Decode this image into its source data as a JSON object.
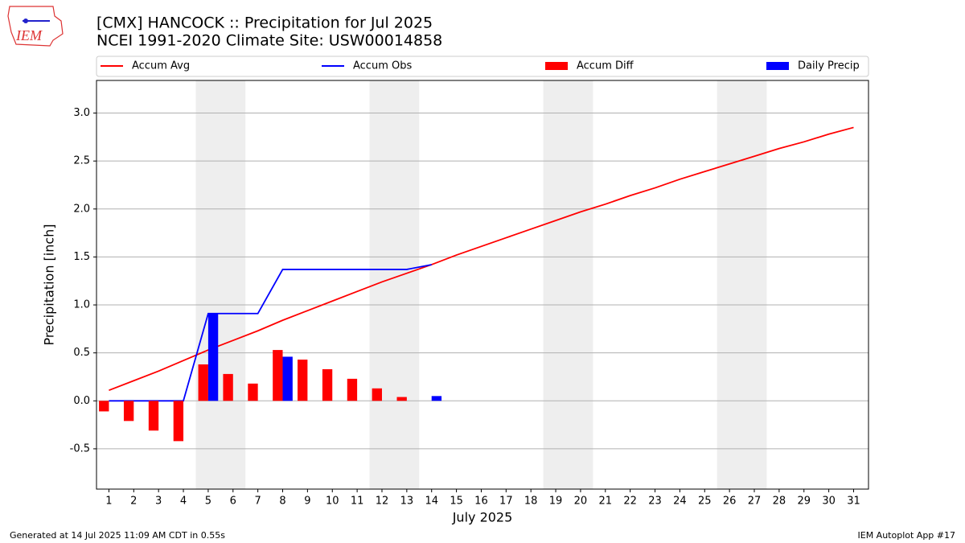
{
  "logo": "IEM",
  "footer": {
    "left": "Generated at 14 Jul 2025 11:09 AM CDT in 0.55s",
    "right": "IEM Autoplot App #17"
  },
  "chart_data": {
    "type": "combo",
    "title": "[CMX] HANCOCK :: Precipitation for Jul 2025",
    "subtitle": "NCEI 1991-2020 Climate Site: USW00014858",
    "y_label": "Precipitation [inch]",
    "x_label": "July 2025",
    "x": [
      1,
      2,
      3,
      4,
      5,
      6,
      7,
      8,
      9,
      10,
      11,
      12,
      13,
      14,
      15,
      16,
      17,
      18,
      19,
      20,
      21,
      22,
      23,
      24,
      25,
      26,
      27,
      28,
      29,
      30,
      31
    ],
    "xlim": [
      0.5,
      31.6
    ],
    "xticks": [
      1,
      2,
      3,
      4,
      5,
      6,
      7,
      8,
      9,
      10,
      11,
      12,
      13,
      14,
      15,
      16,
      17,
      18,
      19,
      20,
      21,
      22,
      23,
      24,
      25,
      26,
      27,
      28,
      29,
      30,
      31
    ],
    "ylim": [
      -0.92,
      3.34
    ],
    "yticks": [
      -0.5,
      {
        "value": 0,
        "label": "0.0"
      },
      0.5,
      {
        "value": 1,
        "label": "1.0"
      },
      1.5,
      {
        "value": 2,
        "label": "2.0"
      },
      2.5,
      {
        "value": 3,
        "label": "3.0"
      }
    ],
    "grid": true,
    "shaded_spans": [
      [
        4.5,
        6.5
      ],
      [
        11.5,
        13.5
      ],
      [
        18.5,
        20.5
      ],
      [
        25.5,
        27.5
      ]
    ],
    "shade_color": "#eeeeee",
    "series": [
      {
        "name": "Accum Avg",
        "type": "line",
        "color": "#ff0000",
        "values": [
          0.11,
          0.21,
          0.31,
          0.42,
          0.53,
          0.63,
          0.73,
          0.84,
          0.94,
          1.04,
          1.14,
          1.24,
          1.33,
          1.42,
          1.52,
          1.61,
          1.7,
          1.79,
          1.88,
          1.97,
          2.05,
          2.14,
          2.22,
          2.31,
          2.39,
          2.47,
          2.55,
          2.63,
          2.7,
          2.78,
          2.85
        ]
      },
      {
        "name": "Accum Obs",
        "type": "line",
        "color": "#0000ff",
        "values": [
          0,
          0,
          0,
          0,
          0.91,
          0.91,
          0.91,
          1.37,
          1.37,
          1.37,
          1.37,
          1.37,
          1.37,
          1.42,
          null,
          null,
          null,
          null,
          null,
          null,
          null,
          null,
          null,
          null,
          null,
          null,
          null,
          null,
          null,
          null,
          null
        ]
      },
      {
        "name": "Accum Diff",
        "type": "bar",
        "side": "left",
        "color": "#ff0000",
        "values": [
          -0.11,
          -0.21,
          -0.31,
          -0.42,
          0.38,
          0.28,
          0.18,
          0.53,
          0.43,
          0.33,
          0.23,
          0.13,
          0.04,
          0,
          null,
          null,
          null,
          null,
          null,
          null,
          null,
          null,
          null,
          null,
          null,
          null,
          null,
          null,
          null,
          null,
          null
        ]
      },
      {
        "name": "Daily Precip",
        "type": "bar",
        "side": "right",
        "color": "#0000ff",
        "values": [
          0,
          0,
          0,
          0,
          0.91,
          0,
          0,
          0.46,
          0,
          0,
          0,
          0,
          0,
          0.05,
          null,
          null,
          null,
          null,
          null,
          null,
          null,
          null,
          null,
          null,
          null,
          null,
          null,
          null,
          null,
          null,
          null
        ]
      }
    ]
  }
}
